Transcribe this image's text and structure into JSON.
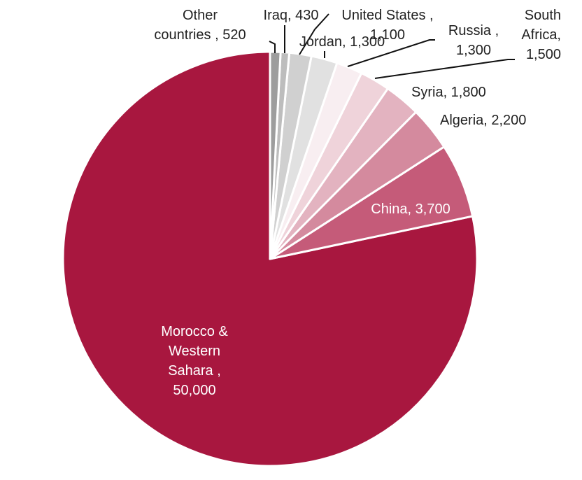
{
  "chart_data": {
    "type": "pie",
    "title": "",
    "slices": [
      {
        "label": "Morocco & Western Sahara",
        "value": 50000,
        "value_text": "50,000",
        "color": "#a8173f"
      },
      {
        "label": "China",
        "value": 3700,
        "value_text": "3,700",
        "color": "#c55b79"
      },
      {
        "label": "Algeria",
        "value": 2200,
        "value_text": "2,200",
        "color": "#d48a9e"
      },
      {
        "label": "Syria",
        "value": 1800,
        "value_text": "1,800",
        "color": "#e3b3c0"
      },
      {
        "label": "South Africa",
        "value": 1500,
        "value_text": "1,500",
        "color": "#efd3da"
      },
      {
        "label": "Russia",
        "value": 1300,
        "value_text": "1,300",
        "color": "#f8eef1"
      },
      {
        "label": "Jordan",
        "value": 1300,
        "value_text": "1,300",
        "color": "#e1e1e1"
      },
      {
        "label": "United States",
        "value": 1100,
        "value_text": "1,100",
        "color": "#d0d0d0"
      },
      {
        "label": "Iraq",
        "value": 430,
        "value_text": "430",
        "color": "#bdbdbd"
      },
      {
        "label": "Other countries",
        "value": 520,
        "value_text": "520",
        "color": "#9d9d9d"
      }
    ]
  }
}
